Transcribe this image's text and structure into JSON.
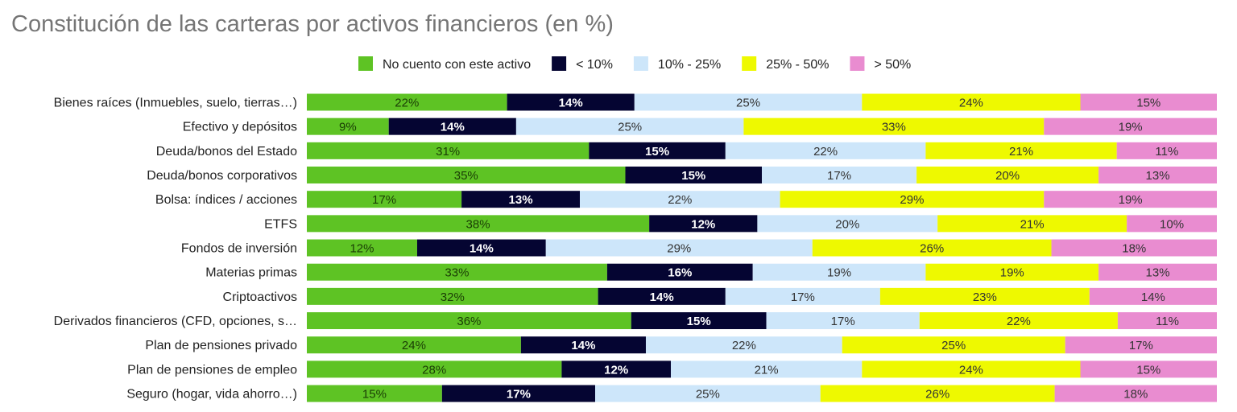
{
  "chart_data": {
    "type": "bar",
    "orientation": "horizontal",
    "stacked": true,
    "title": "Constitución de las carteras por activos financieros (en %)",
    "legend_position": "top",
    "grid": false,
    "xlim": [
      0,
      100
    ],
    "value_suffix": "%",
    "categories": [
      "Bienes raíces (Inmuebles, suelo, tierras…)",
      "Efectivo y depósitos",
      "Deuda/bonos del Estado",
      "Deuda/bonos corporativos",
      "Bolsa: índices / acciones",
      "ETFS",
      "Fondos de inversión",
      "Materias primas",
      "Criptoactivos",
      "Derivados financieros (CFD, opciones, s…",
      "Plan de pensiones privado",
      "Plan de pensiones de empleo",
      "Seguro (hogar, vida ahorro…)"
    ],
    "series": [
      {
        "name": "No cuento con este activo",
        "color": "#5ec324",
        "label_color": "#1a3d05",
        "values": [
          22,
          9,
          31,
          35,
          17,
          38,
          12,
          33,
          32,
          36,
          24,
          28,
          15
        ]
      },
      {
        "name": "< 10%",
        "color": "#050532",
        "label_color": "#ffffff",
        "values": [
          14,
          14,
          15,
          15,
          13,
          12,
          14,
          16,
          14,
          15,
          14,
          12,
          17
        ]
      },
      {
        "name": "10% - 25%",
        "color": "#cde6fa",
        "label_color": "#333333",
        "values": [
          25,
          25,
          22,
          17,
          22,
          20,
          29,
          19,
          17,
          17,
          22,
          21,
          25
        ]
      },
      {
        "name": "25% - 50%",
        "color": "#eef900",
        "label_color": "#333333",
        "values": [
          24,
          33,
          21,
          20,
          29,
          21,
          26,
          19,
          23,
          22,
          25,
          24,
          26
        ]
      },
      {
        "name": "> 50%",
        "color": "#e98cd0",
        "label_color": "#333333",
        "values": [
          15,
          19,
          11,
          13,
          19,
          10,
          18,
          13,
          14,
          11,
          17,
          15,
          18
        ]
      }
    ]
  }
}
